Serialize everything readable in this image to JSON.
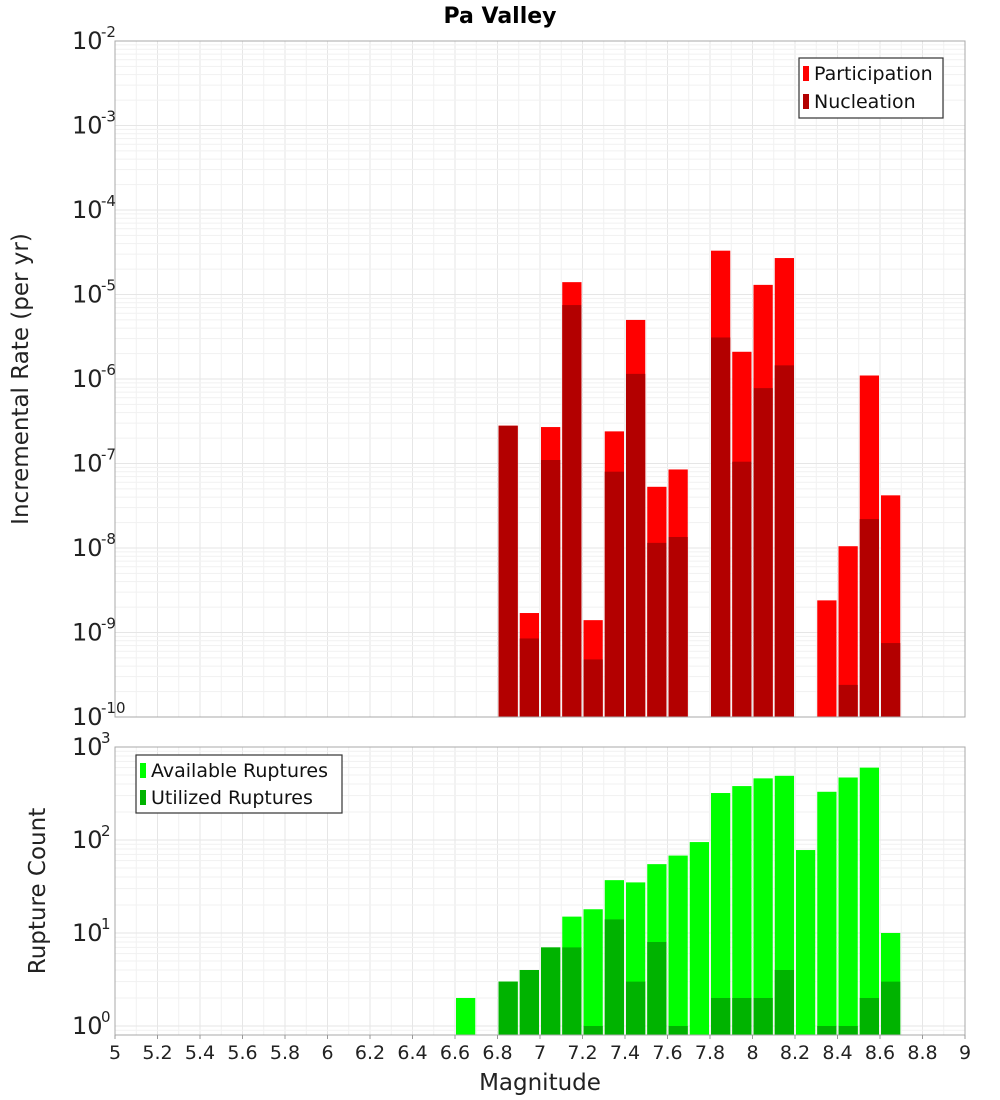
{
  "chart_data": [
    {
      "type": "bar",
      "title": "Pa Valley",
      "xlabel": "Magnitude",
      "ylabel": "Incremental Rate (per yr)",
      "yscale": "log",
      "xlim": [
        5,
        9
      ],
      "ylim": [
        1e-10,
        0.01
      ],
      "ytick_exponents": [
        -10,
        -9,
        -8,
        -7,
        -6,
        -5,
        -4,
        -3,
        -2
      ],
      "grid": true,
      "legend_position": "top-right",
      "bar_width": 0.1,
      "x": [
        6.85,
        6.95,
        7.05,
        7.15,
        7.25,
        7.35,
        7.45,
        7.55,
        7.65,
        7.85,
        7.95,
        8.05,
        8.15,
        8.35,
        8.45,
        8.55,
        8.65
      ],
      "series": [
        {
          "name": "Participation",
          "color": "#ff0000",
          "values": [
            2.8e-07,
            1.7e-09,
            2.7e-07,
            1.4e-05,
            1.4e-09,
            2.4e-07,
            5e-06,
            5.3e-08,
            8.5e-08,
            3.3e-05,
            2.1e-06,
            1.3e-05,
            2.7e-05,
            2.4e-09,
            1.05e-08,
            1.1e-06,
            4.2e-08
          ]
        },
        {
          "name": "Nucleation",
          "color": "#b30000",
          "values": [
            2.8e-07,
            8.5e-10,
            1.1e-07,
            7.5e-06,
            4.8e-10,
            8e-08,
            1.15e-06,
            1.15e-08,
            1.35e-08,
            3.1e-06,
            1.05e-07,
            7.8e-07,
            1.45e-06,
            null,
            2.4e-10,
            2.2e-08,
            7.5e-10
          ]
        }
      ]
    },
    {
      "type": "bar",
      "title": "",
      "xlabel": "Magnitude",
      "ylabel": "Rupture Count",
      "yscale": "log",
      "xlim": [
        5,
        9
      ],
      "ylim": [
        0.8,
        1000
      ],
      "ytick_exponents": [
        0,
        1,
        2,
        3
      ],
      "xticks": [
        "5",
        "5.2",
        "5.4",
        "5.6",
        "5.8",
        "6",
        "6.2",
        "6.4",
        "6.6",
        "6.8",
        "7",
        "7.2",
        "7.4",
        "7.6",
        "7.8",
        "8",
        "8.2",
        "8.4",
        "8.6",
        "8.8",
        "9"
      ],
      "grid": true,
      "legend_position": "top-left",
      "bar_width": 0.1,
      "x": [
        6.65,
        6.85,
        6.95,
        7.05,
        7.15,
        7.25,
        7.35,
        7.45,
        7.55,
        7.65,
        7.75,
        7.85,
        7.95,
        8.05,
        8.15,
        8.25,
        8.35,
        8.45,
        8.55,
        8.65
      ],
      "series": [
        {
          "name": "Available Ruptures",
          "color": "#00ff00",
          "values": [
            2,
            3,
            4,
            7,
            15,
            18,
            37,
            35,
            55,
            68,
            95,
            320,
            380,
            460,
            490,
            78,
            330,
            470,
            600,
            10
          ]
        },
        {
          "name": "Utilized Ruptures",
          "color": "#00b300",
          "values": [
            null,
            3,
            4,
            7,
            7,
            1,
            14,
            3,
            8,
            1,
            null,
            2,
            2,
            2,
            4,
            null,
            1,
            1,
            2,
            3
          ]
        }
      ]
    }
  ]
}
